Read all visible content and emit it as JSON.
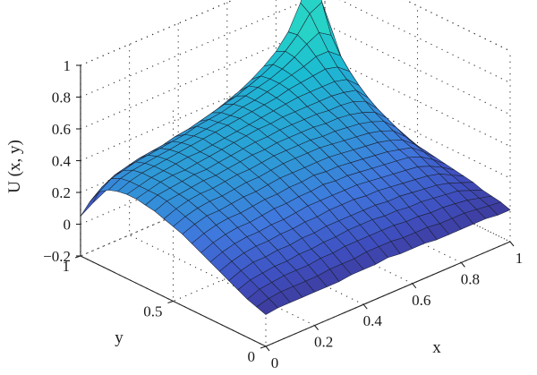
{
  "chart_data": {
    "type": "surface3d",
    "title": "",
    "xlabel": "x",
    "ylabel": "y",
    "zlabel": "U (x, y)",
    "xlim": [
      0,
      1
    ],
    "ylim": [
      0,
      1
    ],
    "zlim": [
      -0.2,
      1
    ],
    "x_ticks": [
      "0",
      "0.2",
      "0.4",
      "0.6",
      "0.8",
      "1"
    ],
    "y_ticks": [
      "0",
      "0.5",
      "1"
    ],
    "z_ticks": [
      "−0.2",
      "0",
      "0.2",
      "0.4",
      "0.6",
      "0.8",
      "1"
    ],
    "x_tick_values": [
      0,
      0.2,
      0.4,
      0.6,
      0.8,
      1
    ],
    "y_tick_values": [
      0,
      0.5,
      1
    ],
    "z_tick_values": [
      -0.2,
      0,
      0.2,
      0.4,
      0.6,
      0.8,
      1
    ],
    "grid": true,
    "colormap": [
      "#3d2f86",
      "#3f4fc0",
      "#4077dd",
      "#2d9bd6",
      "#1bbbd2",
      "#27d3c6"
    ],
    "x": [
      0,
      0.05,
      0.1,
      0.15,
      0.2,
      0.25,
      0.3,
      0.35,
      0.4,
      0.45,
      0.5,
      0.55,
      0.6,
      0.65,
      0.7,
      0.75,
      0.8,
      0.85,
      0.9,
      0.95,
      1
    ],
    "y": [
      0,
      0.05,
      0.1,
      0.15,
      0.2,
      0.25,
      0.3,
      0.35,
      0.4,
      0.45,
      0.5,
      0.55,
      0.6,
      0.65,
      0.7,
      0.75,
      0.8,
      0.85,
      0.9,
      0.95,
      1
    ],
    "z": [
      [
        0.0,
        0.01,
        0.01,
        0.01,
        0.01,
        0.01,
        0.01,
        0.02,
        0.02,
        0.02,
        0.03,
        0.02,
        0.02,
        0.02,
        0.01,
        0.01,
        0.01,
        0.01,
        0.01,
        0.0,
        0.0
      ],
      [
        0.02,
        0.04,
        0.05,
        0.05,
        0.05,
        0.05,
        0.06,
        0.06,
        0.06,
        0.07,
        0.07,
        0.07,
        0.06,
        0.06,
        0.06,
        0.05,
        0.05,
        0.05,
        0.04,
        0.03,
        0.02
      ],
      [
        0.04,
        0.07,
        0.08,
        0.09,
        0.09,
        0.09,
        0.1,
        0.1,
        0.11,
        0.11,
        0.11,
        0.11,
        0.11,
        0.1,
        0.1,
        0.09,
        0.09,
        0.08,
        0.07,
        0.05,
        0.03
      ],
      [
        0.07,
        0.1,
        0.11,
        0.12,
        0.12,
        0.13,
        0.13,
        0.14,
        0.14,
        0.15,
        0.15,
        0.15,
        0.14,
        0.14,
        0.13,
        0.13,
        0.12,
        0.11,
        0.1,
        0.07,
        0.04
      ],
      [
        0.1,
        0.13,
        0.15,
        0.15,
        0.16,
        0.16,
        0.17,
        0.17,
        0.18,
        0.18,
        0.18,
        0.18,
        0.18,
        0.17,
        0.17,
        0.16,
        0.15,
        0.14,
        0.12,
        0.09,
        0.06
      ],
      [
        0.13,
        0.16,
        0.18,
        0.19,
        0.19,
        0.2,
        0.2,
        0.21,
        0.21,
        0.22,
        0.22,
        0.22,
        0.21,
        0.21,
        0.2,
        0.19,
        0.18,
        0.17,
        0.15,
        0.11,
        0.07
      ],
      [
        0.16,
        0.19,
        0.21,
        0.22,
        0.22,
        0.23,
        0.23,
        0.24,
        0.25,
        0.25,
        0.25,
        0.25,
        0.25,
        0.24,
        0.23,
        0.22,
        0.21,
        0.2,
        0.17,
        0.13,
        0.08
      ],
      [
        0.19,
        0.22,
        0.24,
        0.25,
        0.25,
        0.26,
        0.27,
        0.27,
        0.28,
        0.28,
        0.29,
        0.28,
        0.28,
        0.27,
        0.26,
        0.25,
        0.24,
        0.23,
        0.2,
        0.15,
        0.09
      ],
      [
        0.22,
        0.25,
        0.27,
        0.28,
        0.28,
        0.29,
        0.3,
        0.3,
        0.31,
        0.31,
        0.32,
        0.31,
        0.31,
        0.3,
        0.29,
        0.28,
        0.27,
        0.25,
        0.23,
        0.17,
        0.1
      ],
      [
        0.25,
        0.28,
        0.3,
        0.3,
        0.31,
        0.32,
        0.32,
        0.33,
        0.34,
        0.34,
        0.34,
        0.34,
        0.34,
        0.33,
        0.32,
        0.31,
        0.3,
        0.28,
        0.25,
        0.19,
        0.11
      ],
      [
        0.27,
        0.3,
        0.32,
        0.33,
        0.33,
        0.34,
        0.35,
        0.35,
        0.36,
        0.37,
        0.37,
        0.37,
        0.37,
        0.36,
        0.35,
        0.34,
        0.33,
        0.31,
        0.28,
        0.21,
        0.12
      ],
      [
        0.29,
        0.32,
        0.34,
        0.35,
        0.35,
        0.36,
        0.37,
        0.37,
        0.38,
        0.39,
        0.39,
        0.39,
        0.39,
        0.38,
        0.38,
        0.37,
        0.36,
        0.34,
        0.31,
        0.24,
        0.14
      ],
      [
        0.31,
        0.34,
        0.35,
        0.36,
        0.37,
        0.37,
        0.38,
        0.39,
        0.4,
        0.4,
        0.41,
        0.41,
        0.41,
        0.41,
        0.4,
        0.4,
        0.39,
        0.37,
        0.34,
        0.27,
        0.16
      ],
      [
        0.32,
        0.35,
        0.36,
        0.37,
        0.38,
        0.38,
        0.39,
        0.4,
        0.41,
        0.42,
        0.42,
        0.43,
        0.43,
        0.43,
        0.43,
        0.42,
        0.42,
        0.41,
        0.38,
        0.3,
        0.18
      ],
      [
        0.33,
        0.35,
        0.37,
        0.38,
        0.38,
        0.39,
        0.4,
        0.41,
        0.42,
        0.43,
        0.44,
        0.44,
        0.45,
        0.45,
        0.45,
        0.45,
        0.45,
        0.44,
        0.42,
        0.34,
        0.21
      ],
      [
        0.33,
        0.35,
        0.37,
        0.38,
        0.39,
        0.4,
        0.4,
        0.41,
        0.42,
        0.43,
        0.44,
        0.45,
        0.46,
        0.47,
        0.48,
        0.48,
        0.48,
        0.48,
        0.46,
        0.39,
        0.24
      ],
      [
        0.32,
        0.35,
        0.37,
        0.38,
        0.39,
        0.4,
        0.41,
        0.42,
        0.43,
        0.44,
        0.45,
        0.46,
        0.47,
        0.48,
        0.5,
        0.51,
        0.52,
        0.53,
        0.51,
        0.45,
        0.28
      ],
      [
        0.3,
        0.34,
        0.36,
        0.37,
        0.38,
        0.39,
        0.4,
        0.41,
        0.42,
        0.43,
        0.44,
        0.46,
        0.47,
        0.49,
        0.51,
        0.53,
        0.55,
        0.58,
        0.58,
        0.52,
        0.34
      ],
      [
        0.26,
        0.31,
        0.33,
        0.35,
        0.36,
        0.37,
        0.38,
        0.39,
        0.41,
        0.42,
        0.43,
        0.45,
        0.47,
        0.49,
        0.51,
        0.54,
        0.58,
        0.63,
        0.67,
        0.62,
        0.41
      ],
      [
        0.17,
        0.23,
        0.27,
        0.29,
        0.31,
        0.32,
        0.33,
        0.35,
        0.36,
        0.38,
        0.4,
        0.42,
        0.44,
        0.47,
        0.5,
        0.54,
        0.59,
        0.66,
        0.76,
        0.8,
        0.55
      ],
      [
        0.05,
        0.1,
        0.14,
        0.17,
        0.2,
        0.22,
        0.24,
        0.26,
        0.28,
        0.3,
        0.32,
        0.35,
        0.38,
        0.41,
        0.45,
        0.5,
        0.56,
        0.65,
        0.8,
        1.02,
        0.65
      ]
    ]
  }
}
